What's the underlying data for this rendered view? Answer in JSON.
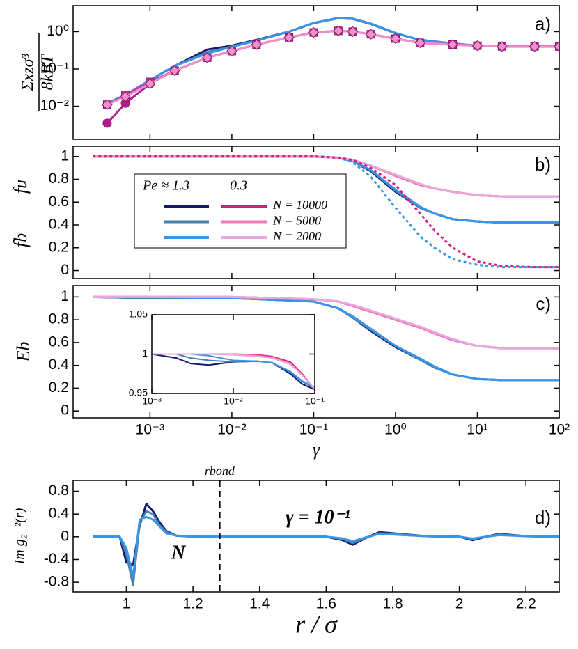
{
  "chart_data": [
    {
      "type": "line",
      "panel": "a)",
      "xscale": "log",
      "yscale": "log",
      "xlim": [
        0.000115,
        100
      ],
      "ylim": [
        0.0013,
        5
      ],
      "xticks": [
        0.001,
        0.01,
        0.1,
        1,
        10,
        100
      ],
      "xtick_labels": false,
      "yticks": [
        {
          "value": 0.01,
          "label": "10⁻²"
        },
        {
          "value": 0.1,
          "label": "10⁻¹"
        },
        {
          "value": 1,
          "label": "10⁰"
        }
      ],
      "ylabel_numerator": "Σxzσ³",
      "ylabel_denominator": "8kBT",
      "x": [
        0.0003,
        0.0005,
        0.001,
        0.002,
        0.005,
        0.01,
        0.02,
        0.05,
        0.1,
        0.2,
        0.3,
        0.5,
        1,
        2,
        5,
        10,
        20,
        50,
        100
      ],
      "series": [
        {
          "color": "#101a6e",
          "values": [
            0.012,
            0.02,
            0.05,
            0.12,
            0.33,
            0.42,
            0.6,
            1.0,
            1.7,
            2.3,
            2.2,
            1.6,
            0.9,
            0.6,
            0.48,
            0.42,
            0.4,
            0.4,
            0.4
          ]
        },
        {
          "color": "#4a80b0",
          "values": [
            0.012,
            0.02,
            0.05,
            0.12,
            0.28,
            0.4,
            0.58,
            1.0,
            1.7,
            2.3,
            2.2,
            1.6,
            0.9,
            0.6,
            0.48,
            0.42,
            0.4,
            0.4,
            0.4
          ]
        },
        {
          "color": "#3a94ea",
          "values": [
            0.012,
            0.02,
            0.05,
            0.12,
            0.26,
            0.39,
            0.57,
            1.0,
            1.72,
            2.35,
            2.25,
            1.65,
            0.92,
            0.6,
            0.48,
            0.42,
            0.4,
            0.4,
            0.4
          ]
        },
        {
          "color": "#b01e8e",
          "marker": "circle",
          "values": [
            0.0035,
            0.012,
            0.04,
            0.09,
            0.2,
            0.3,
            0.45,
            0.7,
            0.95,
            1.05,
            1.0,
            0.85,
            0.65,
            0.5,
            0.45,
            0.42,
            0.4,
            0.4,
            0.4
          ]
        },
        {
          "color": "#cc3aa8",
          "marker": "square",
          "values": [
            0.011,
            0.02,
            0.045,
            0.09,
            0.2,
            0.3,
            0.45,
            0.7,
            0.95,
            1.05,
            1.0,
            0.85,
            0.65,
            0.5,
            0.45,
            0.42,
            0.4,
            0.4,
            0.4
          ]
        },
        {
          "color": "#f090c8",
          "marker": "diamond",
          "values": [
            0.011,
            0.018,
            0.04,
            0.09,
            0.2,
            0.3,
            0.45,
            0.7,
            0.95,
            1.05,
            1.0,
            0.85,
            0.65,
            0.5,
            0.45,
            0.42,
            0.4,
            0.4,
            0.4
          ]
        }
      ]
    },
    {
      "type": "line",
      "panel": "b)",
      "xscale": "log",
      "xlim": [
        0.000115,
        100
      ],
      "ylim": [
        -0.07,
        1.09
      ],
      "xticks": [
        0.001,
        0.01,
        0.1,
        1,
        10,
        100
      ],
      "xtick_labels": false,
      "yticks": [
        0,
        0.2,
        0.4,
        0.6,
        0.8,
        1
      ],
      "ylabel_lower": "fb",
      "ylabel_upper": "fu",
      "legend": {
        "columns": [
          "Pe ≈ 1.3",
          "0.3"
        ],
        "rows": [
          {
            "label": "N = 10000",
            "colors": [
              "#101a6e",
              "#d81b7a"
            ]
          },
          {
            "label": "N = 5000",
            "colors": [
              "#4a80b0",
              "#f07ab8"
            ]
          },
          {
            "label": "N = 2000",
            "colors": [
              "#3a94ea",
              "#e8a8dc"
            ]
          }
        ]
      },
      "x": [
        0.0002,
        0.001,
        0.01,
        0.1,
        0.2,
        0.3,
        0.5,
        1,
        2,
        3,
        5,
        10,
        20,
        50,
        100
      ],
      "series": [
        {
          "color": "#101a6e",
          "values": [
            1,
            1,
            1,
            1,
            0.99,
            0.96,
            0.87,
            0.69,
            0.55,
            0.5,
            0.45,
            0.43,
            0.42,
            0.42,
            0.42
          ]
        },
        {
          "color": "#4a80b0",
          "values": [
            1,
            1,
            1,
            1,
            0.99,
            0.96,
            0.88,
            0.7,
            0.55,
            0.5,
            0.45,
            0.43,
            0.42,
            0.42,
            0.42
          ]
        },
        {
          "color": "#3a94ea",
          "values": [
            1,
            1,
            1,
            1,
            0.99,
            0.96,
            0.88,
            0.71,
            0.56,
            0.5,
            0.45,
            0.43,
            0.42,
            0.42,
            0.42
          ]
        },
        {
          "color": "#d81b7a",
          "values": [
            1,
            1,
            1,
            1,
            0.99,
            0.97,
            0.92,
            0.83,
            0.75,
            0.72,
            0.69,
            0.66,
            0.65,
            0.65,
            0.65
          ]
        },
        {
          "color": "#f07ab8",
          "values": [
            1,
            1,
            1,
            1,
            0.99,
            0.97,
            0.92,
            0.83,
            0.75,
            0.72,
            0.69,
            0.66,
            0.65,
            0.65,
            0.65
          ]
        },
        {
          "color": "#e8a8dc",
          "values": [
            1,
            1,
            1,
            1,
            0.99,
            0.97,
            0.92,
            0.84,
            0.76,
            0.72,
            0.69,
            0.66,
            0.65,
            0.65,
            0.65
          ]
        },
        {
          "color": "#3a94ea",
          "dash": true,
          "values": [
            1,
            1,
            1,
            1,
            0.99,
            0.95,
            0.82,
            0.55,
            0.3,
            0.2,
            0.1,
            0.05,
            0.03,
            0.03,
            0.03
          ]
        },
        {
          "color": "#d81b7a",
          "dash": true,
          "values": [
            1,
            1,
            1,
            1,
            0.99,
            0.97,
            0.9,
            0.75,
            0.5,
            0.35,
            0.2,
            0.08,
            0.04,
            0.03,
            0.03
          ]
        }
      ]
    },
    {
      "type": "line",
      "panel": "c)",
      "xscale": "log",
      "xlim": [
        0.000115,
        100
      ],
      "ylim": [
        -0.06,
        1.1
      ],
      "xticks": [
        {
          "value": 0.001,
          "label": "10⁻³"
        },
        {
          "value": 0.01,
          "label": "10⁻²"
        },
        {
          "value": 0.1,
          "label": "10⁻¹"
        },
        {
          "value": 1,
          "label": "10⁰"
        },
        {
          "value": 10,
          "label": "10¹"
        },
        {
          "value": 100,
          "label": "10²"
        }
      ],
      "yticks": [
        0,
        0.2,
        0.4,
        0.6,
        0.8,
        1
      ],
      "ylabel": "Eb",
      "xlabel": "γ",
      "x": [
        0.0002,
        0.001,
        0.01,
        0.1,
        0.2,
        0.3,
        0.5,
        1,
        2,
        3,
        5,
        10,
        20,
        50,
        100
      ],
      "series": [
        {
          "color": "#101a6e",
          "values": [
            1,
            0.99,
            0.99,
            0.96,
            0.9,
            0.82,
            0.7,
            0.56,
            0.45,
            0.38,
            0.32,
            0.28,
            0.27,
            0.27,
            0.27
          ]
        },
        {
          "color": "#4a80b0",
          "values": [
            1,
            0.99,
            0.99,
            0.96,
            0.9,
            0.82,
            0.71,
            0.57,
            0.45,
            0.38,
            0.32,
            0.28,
            0.27,
            0.27,
            0.27
          ]
        },
        {
          "color": "#3a94ea",
          "values": [
            1,
            1,
            0.99,
            0.96,
            0.9,
            0.83,
            0.72,
            0.57,
            0.46,
            0.39,
            0.32,
            0.28,
            0.27,
            0.27,
            0.27
          ]
        },
        {
          "color": "#d81b7a",
          "values": [
            1,
            1,
            1,
            0.98,
            0.96,
            0.92,
            0.87,
            0.8,
            0.73,
            0.68,
            0.62,
            0.57,
            0.55,
            0.55,
            0.55
          ]
        },
        {
          "color": "#f07ab8",
          "values": [
            1,
            1,
            1,
            0.98,
            0.96,
            0.92,
            0.87,
            0.8,
            0.73,
            0.68,
            0.62,
            0.57,
            0.55,
            0.55,
            0.55
          ]
        },
        {
          "color": "#e8a8dc",
          "values": [
            1,
            1,
            1,
            0.98,
            0.96,
            0.93,
            0.88,
            0.81,
            0.74,
            0.69,
            0.63,
            0.57,
            0.55,
            0.55,
            0.55
          ]
        }
      ]
    },
    {
      "type": "line",
      "xscale": "log",
      "xlim": [
        0.001,
        0.1
      ],
      "ylim": [
        0.95,
        1.05
      ],
      "xticks": [
        {
          "value": 0.001,
          "label": "10⁻³"
        },
        {
          "value": 0.01,
          "label": "10⁻²"
        },
        {
          "value": 0.1,
          "label": "10⁻¹"
        }
      ],
      "yticks": [
        0.95,
        1,
        1.05
      ],
      "x": [
        0.001,
        0.002,
        0.003,
        0.005,
        0.01,
        0.02,
        0.03,
        0.05,
        0.07,
        0.1
      ],
      "series": [
        {
          "color": "#101a6e",
          "values": [
            1,
            0.995,
            0.988,
            0.986,
            0.99,
            0.991,
            0.989,
            0.975,
            0.962,
            0.955
          ]
        },
        {
          "color": "#4a80b0",
          "values": [
            1,
            1,
            0.995,
            0.992,
            0.99,
            0.991,
            0.989,
            0.977,
            0.965,
            0.957
          ]
        },
        {
          "color": "#3a94ea",
          "values": [
            1,
            1,
            1,
            0.998,
            0.992,
            0.991,
            0.989,
            0.978,
            0.966,
            0.958
          ]
        },
        {
          "color": "#d81b7a",
          "values": [
            1,
            1,
            1,
            1,
            1,
            0.999,
            0.997,
            0.99,
            0.975,
            0.955
          ]
        },
        {
          "color": "#f07ab8",
          "values": [
            1,
            1,
            1,
            1,
            1,
            0.998,
            0.996,
            0.988,
            0.974,
            0.955
          ]
        },
        {
          "color": "#e8a8dc",
          "values": [
            1,
            1,
            1,
            1,
            0.999,
            0.997,
            0.995,
            0.987,
            0.973,
            0.956
          ]
        }
      ]
    },
    {
      "type": "line",
      "panel": "d)",
      "xlim": [
        0.84,
        2.3
      ],
      "ylim": [
        -0.97,
        0.99
      ],
      "xticks": [
        1,
        1.2,
        1.4,
        1.6,
        1.8,
        2,
        2.2
      ],
      "yticks": [
        -0.8,
        -0.4,
        0,
        0.4,
        0.8
      ],
      "ylabel": "Im g₂⁻²(r)",
      "xlabel": "r / σ",
      "vline": {
        "x": 1.28,
        "label": "rbond"
      },
      "annotation": "γ = 10⁻¹",
      "arrow_label": "N",
      "x": [
        0.9,
        0.98,
        1.0,
        1.02,
        1.04,
        1.06,
        1.08,
        1.1,
        1.12,
        1.15,
        1.2,
        1.3,
        1.6,
        1.65,
        1.68,
        1.72,
        1.76,
        1.8,
        1.9,
        2.0,
        2.04,
        2.08,
        2.12,
        2.2,
        2.3
      ],
      "series": [
        {
          "color": "#101a6e",
          "values": [
            0,
            0,
            -0.45,
            -0.5,
            0.2,
            0.58,
            0.45,
            0.25,
            0.1,
            0.02,
            0,
            0,
            0,
            -0.06,
            -0.14,
            -0.02,
            0.08,
            0.06,
            0.01,
            0,
            -0.06,
            0,
            0.05,
            0.01,
            0
          ]
        },
        {
          "color": "#4a80b0",
          "values": [
            0,
            0,
            -0.3,
            -0.85,
            0.25,
            0.45,
            0.4,
            0.2,
            0.08,
            0.02,
            0,
            0,
            0,
            -0.04,
            -0.11,
            -0.02,
            0.06,
            0.05,
            0.01,
            0,
            -0.04,
            0,
            0.04,
            0.01,
            0
          ]
        },
        {
          "color": "#3a94ea",
          "values": [
            0,
            0,
            -0.2,
            -0.7,
            0.3,
            0.35,
            0.3,
            0.18,
            0.06,
            0.02,
            0,
            0,
            0,
            -0.03,
            -0.08,
            -0.01,
            0.05,
            0.04,
            0.01,
            0,
            -0.03,
            0,
            0.03,
            0.01,
            0
          ]
        }
      ]
    }
  ]
}
